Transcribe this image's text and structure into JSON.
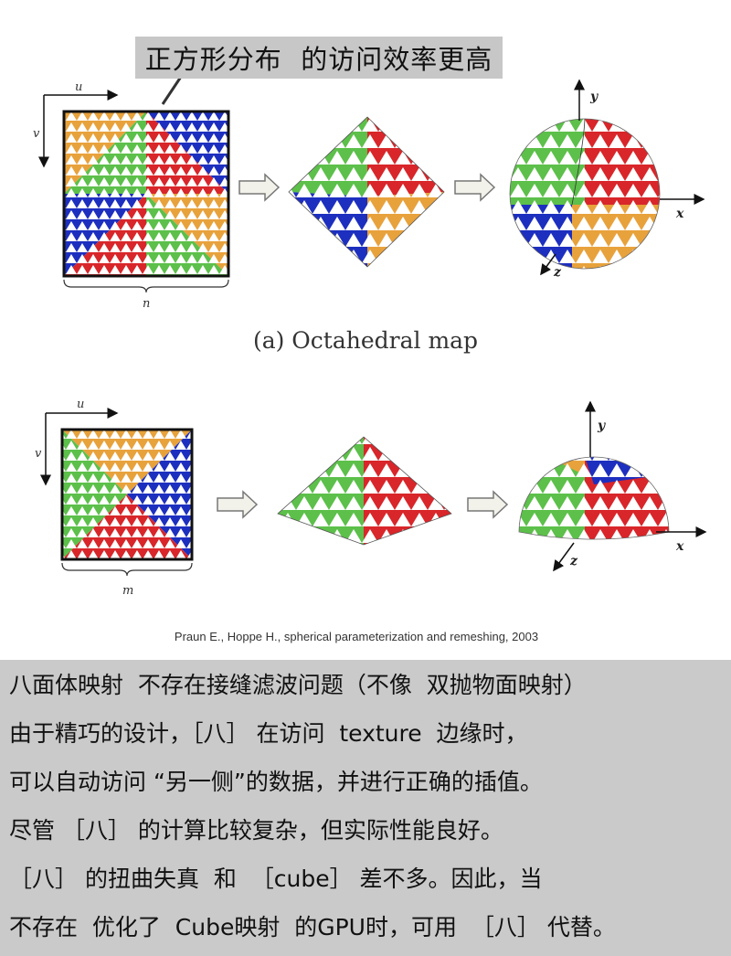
{
  "callout": {
    "text": "正方形分布  的访问效率更高"
  },
  "figure_a": {
    "axis_u": "u",
    "axis_v": "v",
    "width_label": "n",
    "axis_x": "x",
    "axis_y": "y",
    "axis_z": "z",
    "caption": "(a)  Octahedral map"
  },
  "figure_b": {
    "axis_u": "u",
    "axis_v": "v",
    "width_label": "m",
    "axis_x": "x",
    "axis_y": "y",
    "axis_z": "z"
  },
  "credit": "Praun E., Hoppe H., spherical parameterization and remeshing, 2003",
  "notes": [
    "八面体映射  不存在接缝滤波问题（不像  双抛物面映射）",
    "由于精巧的设计，［八］ 在访问  texture  边缘时，",
    "可以自动访问 “另一侧”的数据，并进行正确的插值。",
    "尽管 ［八］ 的计算比较复杂，但实际性能良好。",
    "［八］ 的扭曲失真  和  ［cube］ 差不多。因此，当",
    "不存在  优化了  Cube映射  的GPU时，可用  ［八］ 代替。"
  ],
  "colors": {
    "orange": "#e8a23c",
    "green": "#5cc04a",
    "blue": "#1d2fbf",
    "red": "#d8262a",
    "white": "#ffffff",
    "note_bg": "#cacaca",
    "callout_bg": "#c7c7c7"
  }
}
